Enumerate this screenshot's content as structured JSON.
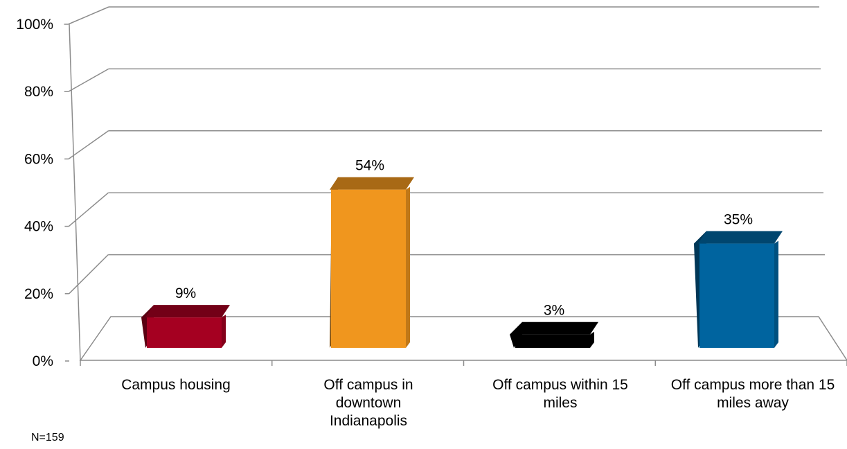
{
  "chart_data": {
    "type": "bar",
    "style": "3d-column",
    "categories": [
      "Campus housing",
      "Off campus in downtown Indianapolis",
      "Off campus within 15 miles",
      "Off campus more than 15 miles away"
    ],
    "values": [
      9,
      54,
      3,
      35
    ],
    "value_labels": [
      "9%",
      "54%",
      "3%",
      "35%"
    ],
    "colors": [
      "#A50021",
      "#F0961E",
      "#000000",
      "#00649F"
    ],
    "ylim": [
      0,
      100
    ],
    "yticks": [
      0,
      20,
      40,
      60,
      80,
      100
    ],
    "ytick_labels": [
      "0%",
      "20%",
      "40%",
      "60%",
      "80%",
      "100%"
    ],
    "grid": true,
    "legend": "none",
    "title": "",
    "xlabel": "",
    "ylabel": ""
  },
  "note": "N=159"
}
